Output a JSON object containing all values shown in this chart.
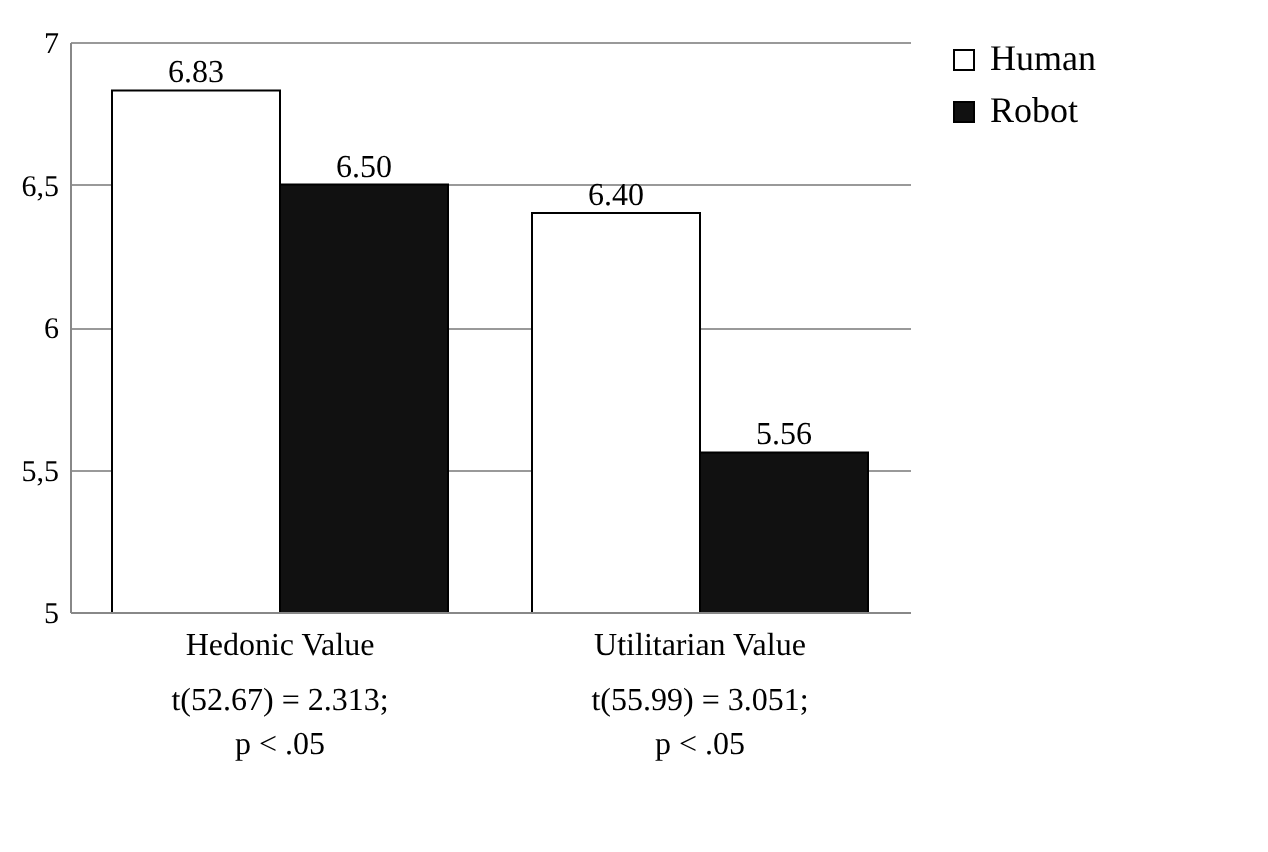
{
  "chart_data": {
    "type": "bar",
    "categories": [
      "Hedonic Value",
      "Utilitarian Value"
    ],
    "series": [
      {
        "name": "Human",
        "color": "#ffffff",
        "values": [
          6.83,
          6.4
        ]
      },
      {
        "name": "Robot",
        "color": "#111111",
        "values": [
          6.5,
          5.56
        ]
      }
    ],
    "ylim": [
      5,
      7
    ],
    "yticks": [
      5,
      {
        "value": 5.5,
        "label": "5,5"
      },
      6,
      {
        "value": 6.5,
        "label": "6,5"
      },
      7
    ],
    "value_labels": [
      [
        "6.83",
        "6.40"
      ],
      [
        "6.50",
        "5.56"
      ]
    ],
    "grid": "y",
    "legend": "right",
    "annotations": [
      "t(52.67) = 2.313;\np < .05",
      "t(55.99) = 3.051;\np < .05"
    ]
  }
}
